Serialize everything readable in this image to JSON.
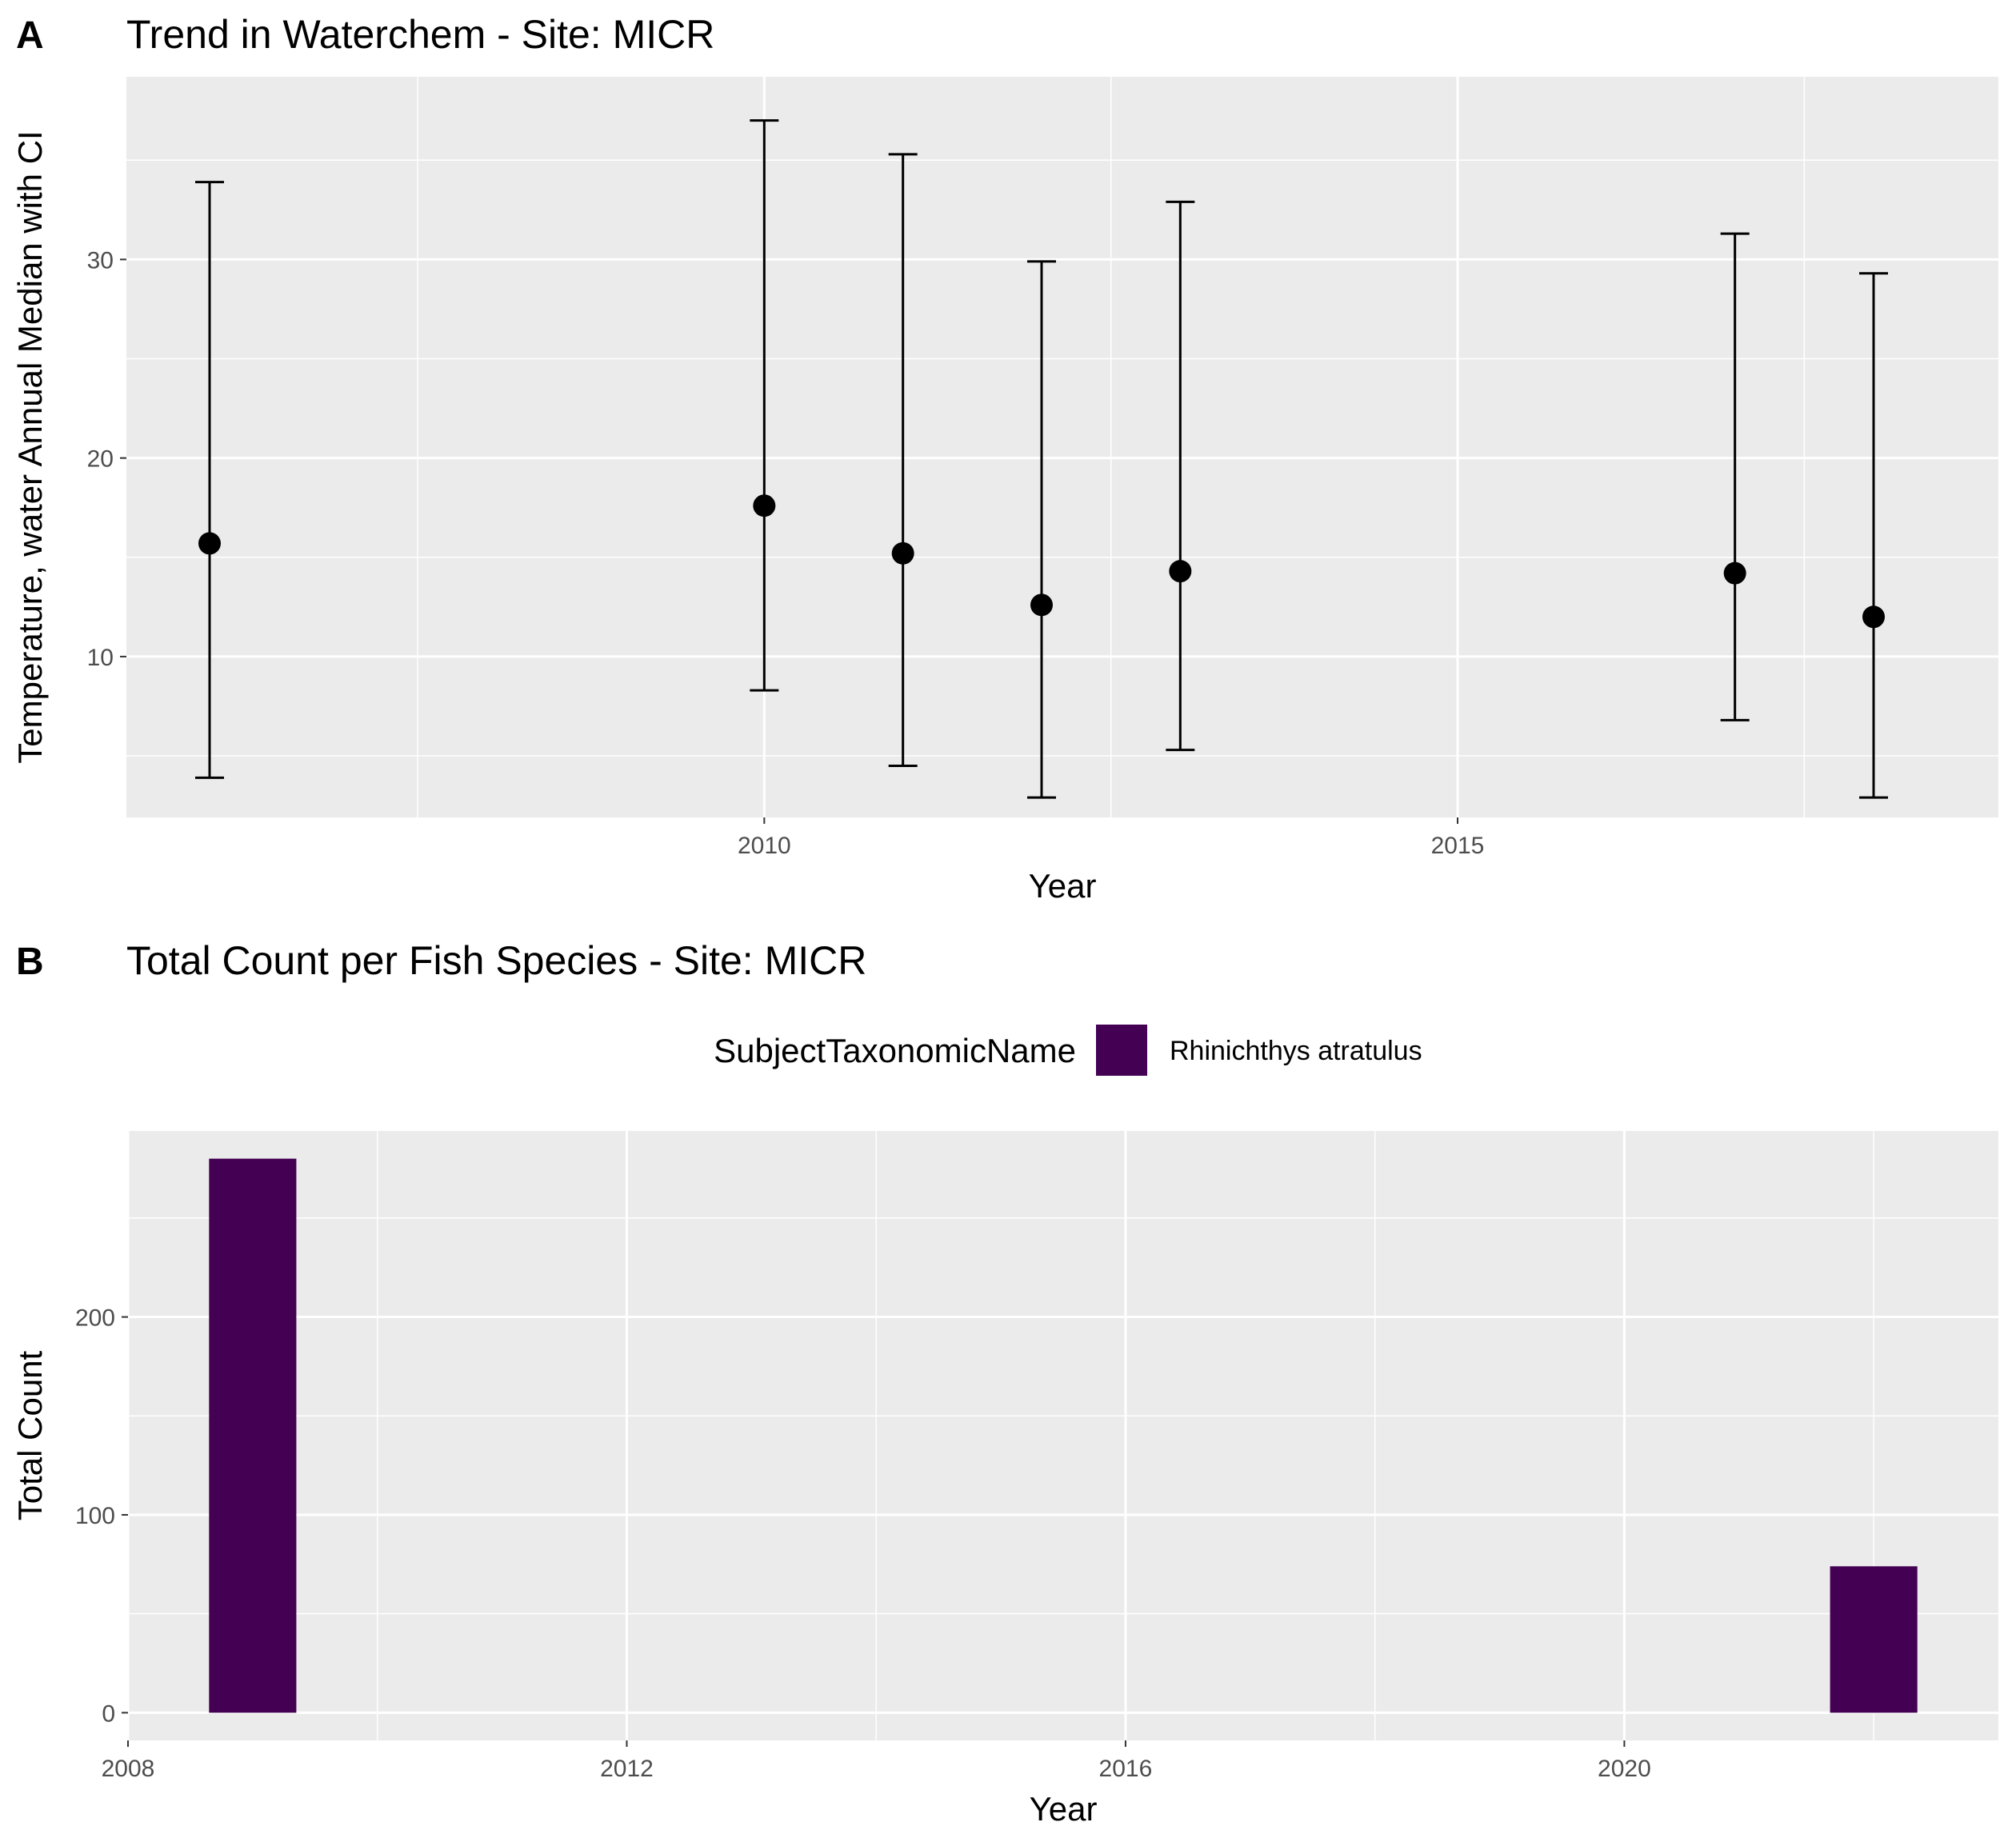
{
  "chart_data": [
    {
      "panel": "A",
      "type": "scatter",
      "title": "Trend in Waterchem - Site: MICR",
      "xlabel": "Year",
      "ylabel": "Temperature, water Annual Median with CI",
      "xlim": [
        2005.4,
        2018.9
      ],
      "ylim": [
        1.9,
        39.2
      ],
      "xticks": [
        2010,
        2015
      ],
      "yticks": [
        10,
        20,
        30
      ],
      "grid": true,
      "background": "#ebebeb",
      "point_color": "#000000",
      "points": [
        {
          "x": 2006,
          "y": 15.7,
          "lower": 3.9,
          "upper": 33.9
        },
        {
          "x": 2010,
          "y": 17.6,
          "lower": 8.3,
          "upper": 37.0
        },
        {
          "x": 2011,
          "y": 15.2,
          "lower": 4.5,
          "upper": 35.3
        },
        {
          "x": 2012,
          "y": 12.6,
          "lower": 2.9,
          "upper": 29.9
        },
        {
          "x": 2013,
          "y": 14.3,
          "lower": 5.3,
          "upper": 32.9
        },
        {
          "x": 2017,
          "y": 14.2,
          "lower": 6.8,
          "upper": 31.3
        },
        {
          "x": 2018,
          "y": 12.0,
          "lower": 2.9,
          "upper": 29.3
        }
      ]
    },
    {
      "panel": "B",
      "type": "bar",
      "title": "Total Count per Fish Species - Site: MICR",
      "xlabel": "Year",
      "ylabel": "Total Count",
      "xlim": [
        2008.0,
        2023.0
      ],
      "ylim": [
        -14,
        294
      ],
      "xticks": [
        2008,
        2012,
        2016,
        2020
      ],
      "yticks": [
        0,
        100,
        200
      ],
      "grid": true,
      "background": "#ebebeb",
      "legend_title": "SubjectTaxonomicName",
      "legend_position": "top",
      "series": [
        {
          "name": "Rhinichthys atratulus",
          "color": "#440154",
          "bar_width": 0.7,
          "x": [
            2009,
            2022
          ],
          "values": [
            280,
            74
          ]
        }
      ]
    }
  ]
}
